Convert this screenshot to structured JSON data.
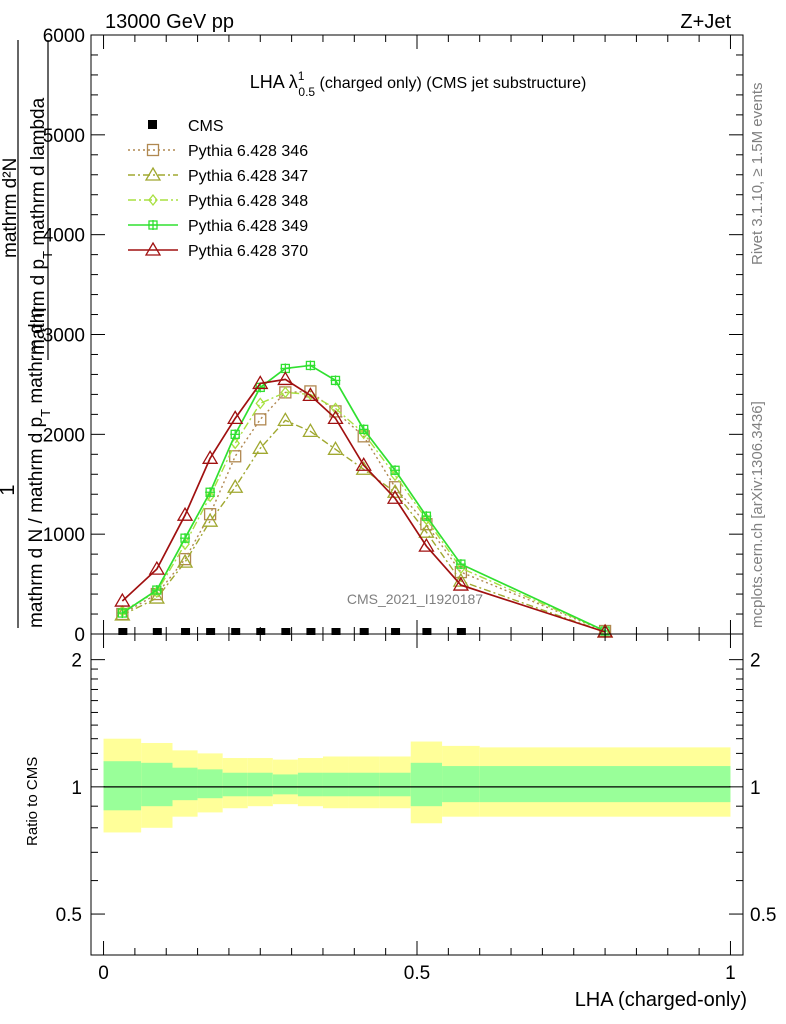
{
  "header": {
    "left": "13000 GeV pp",
    "right": "Z+Jet"
  },
  "side_text": {
    "rivet": "Rivet 3.1.10, ≥ 1.5M events",
    "mcplots": "mcplots.cern.ch [arXiv:1306.3436]"
  },
  "chart_data": [
    {
      "type": "line",
      "title": "LHA λ",
      "title_sup": "1",
      "title_sub": "0.5",
      "title_rest": " (charged only) (CMS jet substructure)",
      "watermark": "CMS_2021_I1920187",
      "xlabel": "LHA (charged-only)",
      "ylabel_parts": [
        "1",
        "mathrm d N / mathrm d p",
        "T",
        " mathrm d η",
        "mathrm d²N",
        "mathrm d p",
        "T",
        " mathrm d lambda"
      ],
      "xlim": [
        -0.02,
        1.02
      ],
      "ylim": [
        0,
        6000
      ],
      "y_ticks": [
        0,
        1000,
        2000,
        3000,
        4000,
        5000,
        6000
      ],
      "y_tick_labels": [
        "0",
        "1000",
        "2000",
        "3000",
        "4000",
        "5000",
        "6000"
      ],
      "cms": {
        "name": "CMS",
        "x": [
          0.03,
          0.085,
          0.13,
          0.17,
          0.21,
          0.25,
          0.29,
          0.33,
          0.37,
          0.415,
          0.465,
          0.515,
          0.57
        ],
        "y": [
          0,
          0,
          0,
          0,
          0,
          0,
          0,
          0,
          0,
          0,
          0,
          0,
          0
        ],
        "color": "#000000"
      },
      "series": [
        {
          "name": "Pythia 6.428 346",
          "color": "#b08850",
          "marker": "square",
          "dash": "2,3",
          "x": [
            0.03,
            0.085,
            0.13,
            0.17,
            0.21,
            0.25,
            0.29,
            0.33,
            0.37,
            0.415,
            0.465,
            0.515,
            0.57,
            0.8
          ],
          "y": [
            200,
            400,
            750,
            1200,
            1780,
            2150,
            2420,
            2430,
            2230,
            1980,
            1470,
            1100,
            620,
            30
          ]
        },
        {
          "name": "Pythia 6.428 347",
          "color": "#a0a830",
          "marker": "triangle",
          "dash": "7,3,2,3",
          "x": [
            0.03,
            0.085,
            0.13,
            0.17,
            0.21,
            0.25,
            0.29,
            0.33,
            0.37,
            0.415,
            0.465,
            0.515,
            0.57,
            0.8
          ],
          "y": [
            190,
            360,
            720,
            1130,
            1470,
            1860,
            2140,
            2030,
            1850,
            1650,
            1420,
            1020,
            530,
            20
          ]
        },
        {
          "name": "Pythia 6.428 348",
          "color": "#a8e040",
          "marker": "diamond",
          "dash": "8,3,2,3",
          "x": [
            0.03,
            0.085,
            0.13,
            0.17,
            0.21,
            0.25,
            0.29,
            0.33,
            0.37,
            0.415,
            0.465,
            0.515,
            0.57,
            0.8
          ],
          "y": [
            230,
            420,
            900,
            1380,
            1910,
            2310,
            2420,
            2400,
            2260,
            2010,
            1590,
            1150,
            660,
            30
          ]
        },
        {
          "name": "Pythia 6.428 349",
          "color": "#30e030",
          "marker": "cross",
          "dash": "",
          "x": [
            0.03,
            0.085,
            0.13,
            0.17,
            0.21,
            0.25,
            0.29,
            0.33,
            0.37,
            0.415,
            0.465,
            0.515,
            0.57,
            0.8
          ],
          "y": [
            210,
            440,
            960,
            1420,
            2000,
            2470,
            2660,
            2690,
            2540,
            2050,
            1640,
            1180,
            700,
            30
          ]
        },
        {
          "name": "Pythia 6.428 370",
          "color": "#a01010",
          "marker": "triangle",
          "dash": "",
          "x": [
            0.03,
            0.085,
            0.13,
            0.17,
            0.21,
            0.25,
            0.29,
            0.33,
            0.37,
            0.415,
            0.465,
            0.515,
            0.57,
            0.8
          ],
          "y": [
            330,
            650,
            1190,
            1760,
            2160,
            2510,
            2550,
            2390,
            2160,
            1690,
            1360,
            880,
            490,
            20
          ]
        }
      ]
    },
    {
      "type": "area",
      "ylabel": "Ratio to CMS",
      "xlabel": "LHA (charged-only)",
      "xlim": [
        -0.02,
        1.02
      ],
      "ylim": [
        0.4,
        2.3
      ],
      "log_y": true,
      "y_ticks": [
        0.5,
        1,
        2
      ],
      "y_tick_labels": [
        "0.5",
        "1",
        "2"
      ],
      "x_ticks": [
        0,
        0.5,
        1
      ],
      "x_tick_labels": [
        "0",
        "0.5",
        "1"
      ],
      "bin_edges": [
        0,
        0.06,
        0.11,
        0.15,
        0.19,
        0.23,
        0.27,
        0.31,
        0.35,
        0.39,
        0.44,
        0.49,
        0.54,
        0.6,
        1.0
      ],
      "outer_band": {
        "color": "#ffff99",
        "upper": [
          1.3,
          1.27,
          1.22,
          1.2,
          1.17,
          1.17,
          1.16,
          1.17,
          1.18,
          1.18,
          1.18,
          1.28,
          1.25,
          1.24
        ],
        "lower": [
          0.78,
          0.8,
          0.85,
          0.87,
          0.89,
          0.9,
          0.91,
          0.9,
          0.89,
          0.89,
          0.89,
          0.82,
          0.85,
          0.85
        ]
      },
      "inner_band": {
        "color": "#99ff99",
        "upper": [
          1.15,
          1.14,
          1.11,
          1.1,
          1.08,
          1.08,
          1.07,
          1.08,
          1.08,
          1.08,
          1.08,
          1.14,
          1.12,
          1.12
        ],
        "lower": [
          0.88,
          0.9,
          0.93,
          0.94,
          0.95,
          0.95,
          0.96,
          0.95,
          0.95,
          0.95,
          0.95,
          0.9,
          0.92,
          0.92
        ]
      },
      "reference": 1
    }
  ]
}
